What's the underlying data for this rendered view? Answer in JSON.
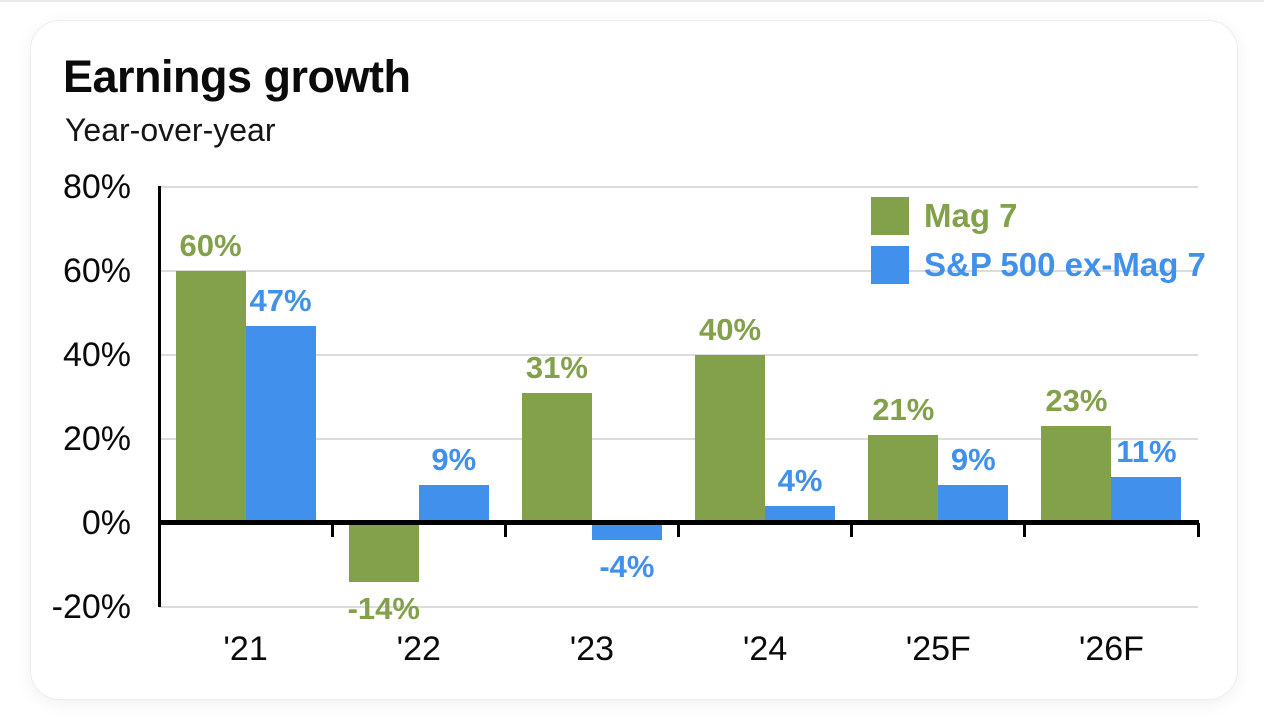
{
  "page": {
    "background": "#ffffff"
  },
  "card": {
    "background": "#ffffff",
    "border_color": "#ededed"
  },
  "chart_data": {
    "type": "bar",
    "title": "Earnings growth",
    "subtitle": "Year-over-year",
    "categories": [
      "'21",
      "'22",
      "'23",
      "'24",
      "'25F",
      "'26F"
    ],
    "series": [
      {
        "name": "Mag 7",
        "color": "#83A04B",
        "values": [
          60,
          -14,
          31,
          40,
          21,
          23
        ],
        "labels": [
          "60%",
          "-14%",
          "31%",
          "40%",
          "21%",
          "23%"
        ]
      },
      {
        "name": "S&P 500 ex-Mag 7",
        "color": "#4190EB",
        "values": [
          47,
          9,
          -4,
          4,
          9,
          11
        ],
        "labels": [
          "47%",
          "9%",
          "-4%",
          "4%",
          "9%",
          "11%"
        ]
      }
    ],
    "value_suffix": "%",
    "ylim": [
      -20,
      80
    ],
    "yticks": [
      80,
      60,
      40,
      20,
      0,
      -20
    ],
    "ytick_labels": [
      "80%",
      "60%",
      "40%",
      "20%",
      "0%",
      "-20%"
    ],
    "grid": true,
    "gridline_color": "#dcdcdc",
    "zero_line_color": "#000000",
    "axis_color": "#000000",
    "legend_position": "top-right",
    "data_labels": true
  }
}
